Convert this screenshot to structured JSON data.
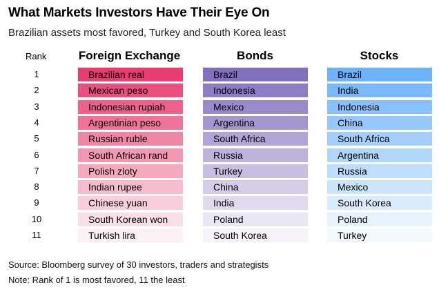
{
  "title": "What Markets Investors Have Their Eye On",
  "subtitle": "Brazilian assets most favored, Turkey and South Korea least",
  "rank_header": "Rank",
  "footer": {
    "source": "Source: Bloomberg survey of 30 investors, traders and strategists",
    "note": "Note: Rank of 1 is most favored, 11 the least"
  },
  "chart_data": {
    "type": "table",
    "columns": [
      "Foreign Exchange",
      "Bonds",
      "Stocks"
    ],
    "ranks": [
      "1",
      "2",
      "3",
      "4",
      "5",
      "6",
      "7",
      "8",
      "9",
      "10",
      "11"
    ],
    "foreign_exchange": [
      "Brazilian real",
      "Mexican peso",
      "Indonesian rupiah",
      "Argentinian peso",
      "Russian ruble",
      "South African rand",
      "Polish zloty",
      "Indian rupee",
      "Chinese yuan",
      "South Korean won",
      "Turkish lira"
    ],
    "bonds": [
      "Brazil",
      "Indonesia",
      "Mexico",
      "Argentina",
      "South Africa",
      "Russia",
      "Turkey",
      "China",
      "India",
      "Poland",
      "South Korea"
    ],
    "stocks": [
      "Brazil",
      "India",
      "Indonesia",
      "China",
      "South Africa",
      "Argentina",
      "Russia",
      "Mexico",
      "South Korea",
      "Poland",
      "Turkey"
    ],
    "colors": {
      "foreign_exchange": "#e8336b",
      "bonds": "#7b68bb",
      "stocks": "#67aefc"
    }
  }
}
